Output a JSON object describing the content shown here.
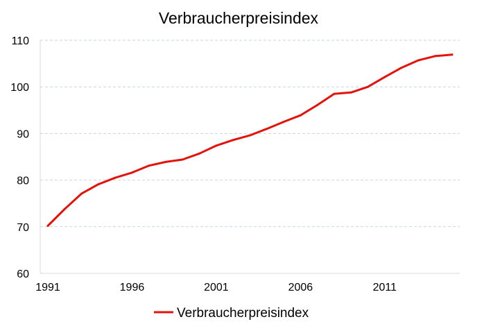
{
  "chart_data": {
    "type": "line",
    "title": "Verbraucherpreisindex",
    "xlabel": "",
    "ylabel": "",
    "ylim": [
      60,
      110
    ],
    "yticks": [
      60,
      70,
      80,
      90,
      100,
      110
    ],
    "xlim": [
      1991,
      2015
    ],
    "xticks": [
      1991,
      1996,
      2001,
      2006,
      2011
    ],
    "grid": "horizontal-dashed",
    "legend_position": "bottom",
    "colors": {
      "series": "#e3120b"
    },
    "x": [
      1991,
      1992,
      1993,
      1994,
      1995,
      1996,
      1997,
      1998,
      1999,
      2000,
      2001,
      2002,
      2003,
      2004,
      2005,
      2006,
      2007,
      2008,
      2009,
      2010,
      2011,
      2012,
      2013,
      2014,
      2015
    ],
    "series": [
      {
        "name": "Verbraucherpreisindex",
        "values": [
          70.2,
          73.8,
          77.1,
          79.1,
          80.5,
          81.6,
          83.1,
          83.9,
          84.4,
          85.7,
          87.4,
          88.6,
          89.6,
          91.0,
          92.5,
          93.9,
          96.1,
          98.5,
          98.8,
          100.0,
          102.1,
          104.1,
          105.7,
          106.6,
          106.9
        ]
      }
    ]
  }
}
